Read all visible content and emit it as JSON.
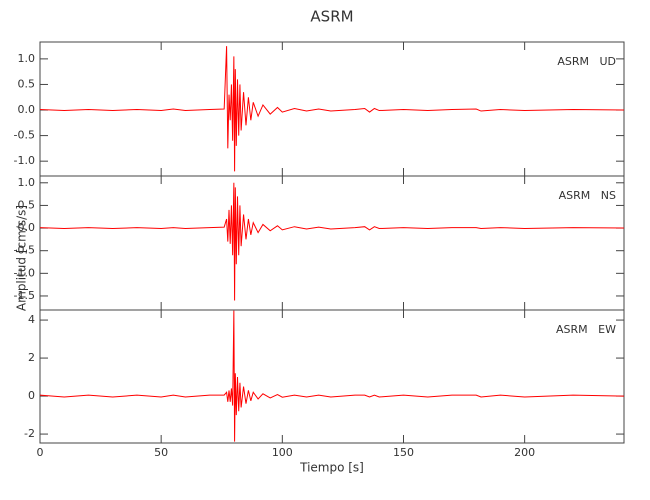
{
  "title": "ASRM",
  "xlabel": "Tiempo [s]",
  "ylabel": "Amplitud [cm/s/s]",
  "chart_data": [
    {
      "type": "line",
      "annotation": "ASRM   UD",
      "x": [
        0,
        10,
        20,
        30,
        40,
        50,
        55,
        60,
        70,
        76,
        77,
        77.5,
        78,
        78.5,
        79,
        79.5,
        80,
        80.3,
        80.6,
        81,
        81.5,
        82,
        82.5,
        83,
        84,
        85,
        86,
        87,
        88,
        90,
        92,
        95,
        98,
        100,
        105,
        110,
        115,
        120,
        130,
        134,
        136,
        138,
        140,
        150,
        160,
        170,
        180,
        182,
        190,
        200,
        220,
        241
      ],
      "series": [
        {
          "color": "#ff0000",
          "values": [
            0.01,
            -0.01,
            0.01,
            -0.01,
            0.01,
            -0.01,
            0.02,
            -0.01,
            0.01,
            0.02,
            1.25,
            -0.75,
            0.3,
            -0.2,
            0.5,
            -0.6,
            1.05,
            -1.2,
            0.8,
            -0.7,
            0.6,
            -0.5,
            0.5,
            -0.4,
            0.35,
            -0.3,
            0.25,
            -0.2,
            0.15,
            -0.12,
            0.1,
            -0.08,
            0.05,
            -0.04,
            0.03,
            -0.02,
            0.02,
            -0.02,
            0.01,
            0.03,
            -0.04,
            0.03,
            -0.01,
            0.01,
            -0.01,
            0.01,
            0.02,
            -0.02,
            0.01,
            -0.01,
            0.01,
            0.0
          ]
        }
      ],
      "xlim": [
        0,
        241
      ],
      "xticks": [
        0,
        50,
        100,
        150,
        200
      ],
      "ylim": [
        -1.29,
        1.33
      ],
      "yticks": [
        {
          "value": -1,
          "label": "-1.0"
        },
        {
          "value": -0.5,
          "label": "-0.5"
        },
        {
          "value": 0,
          "label": "0.0"
        },
        {
          "value": 0.5,
          "label": "0.5"
        },
        {
          "value": 1,
          "label": "1.0"
        }
      ]
    },
    {
      "type": "line",
      "annotation": "ASRM   NS",
      "x": [
        0,
        10,
        20,
        30,
        40,
        50,
        55,
        60,
        70,
        76,
        77,
        77.5,
        78,
        78.5,
        79,
        79.5,
        80,
        80.3,
        80.6,
        81,
        81.5,
        82,
        82.5,
        83,
        84,
        85,
        86,
        87,
        88,
        90,
        92,
        95,
        98,
        100,
        105,
        110,
        115,
        120,
        130,
        134,
        136,
        138,
        140,
        150,
        160,
        170,
        180,
        182,
        190,
        200,
        220,
        241
      ],
      "series": [
        {
          "color": "#ff0000",
          "values": [
            0.01,
            -0.01,
            0.01,
            -0.01,
            0.01,
            -0.01,
            0.01,
            -0.01,
            0.01,
            0.02,
            0.2,
            -0.3,
            0.4,
            -0.35,
            0.5,
            -0.6,
            1.0,
            -1.6,
            0.9,
            -0.8,
            0.7,
            -0.6,
            0.5,
            -0.4,
            0.3,
            -0.25,
            0.2,
            -0.15,
            0.12,
            -0.1,
            0.08,
            -0.06,
            0.05,
            -0.04,
            0.03,
            -0.02,
            0.02,
            -0.02,
            0.01,
            0.03,
            -0.04,
            0.03,
            -0.01,
            0.01,
            -0.01,
            0.01,
            0.01,
            -0.01,
            0.01,
            -0.01,
            0.01,
            0.0
          ]
        }
      ],
      "xlim": [
        0,
        241
      ],
      "xticks": [
        0,
        50,
        100,
        150,
        200
      ],
      "ylim": [
        -1.81,
        1.15
      ],
      "yticks": [
        {
          "value": -1.5,
          "label": "-1.5"
        },
        {
          "value": -1,
          "label": "-1.0"
        },
        {
          "value": -0.5,
          "label": "-0.5"
        },
        {
          "value": 0,
          "label": "0.0"
        },
        {
          "value": 0.5,
          "label": "0.5"
        },
        {
          "value": 1,
          "label": "1.0"
        }
      ]
    },
    {
      "type": "line",
      "annotation": "ASRM   EW",
      "x": [
        0,
        10,
        20,
        30,
        40,
        50,
        55,
        60,
        70,
        76,
        77,
        77.5,
        78,
        78.5,
        79,
        79.5,
        80,
        80.3,
        80.6,
        81,
        81.5,
        82,
        82.5,
        83,
        84,
        85,
        86,
        87,
        88,
        90,
        92,
        95,
        98,
        100,
        105,
        110,
        115,
        120,
        130,
        134,
        136,
        138,
        140,
        150,
        160,
        170,
        180,
        182,
        190,
        200,
        220,
        241
      ],
      "series": [
        {
          "color": "#ff0000",
          "values": [
            0.05,
            -0.05,
            0.05,
            -0.05,
            0.05,
            -0.05,
            0.05,
            -0.05,
            0.05,
            0.05,
            0.2,
            -0.3,
            0.3,
            -0.3,
            0.4,
            -0.5,
            4.5,
            -2.4,
            1.2,
            -1.0,
            1.0,
            -0.8,
            0.7,
            -0.6,
            0.5,
            -0.4,
            0.3,
            -0.25,
            0.2,
            -0.15,
            0.12,
            -0.1,
            0.08,
            -0.06,
            0.05,
            -0.05,
            0.05,
            -0.05,
            0.05,
            0.05,
            -0.05,
            0.05,
            -0.05,
            0.05,
            -0.05,
            0.05,
            0.05,
            -0.05,
            0.05,
            -0.05,
            0.05,
            0.0
          ]
        }
      ],
      "xlim": [
        0,
        241
      ],
      "xticks": [
        0,
        50,
        100,
        150,
        200
      ],
      "ylim": [
        -2.47,
        4.53
      ],
      "yticks": [
        -2,
        0,
        2,
        4
      ]
    }
  ]
}
